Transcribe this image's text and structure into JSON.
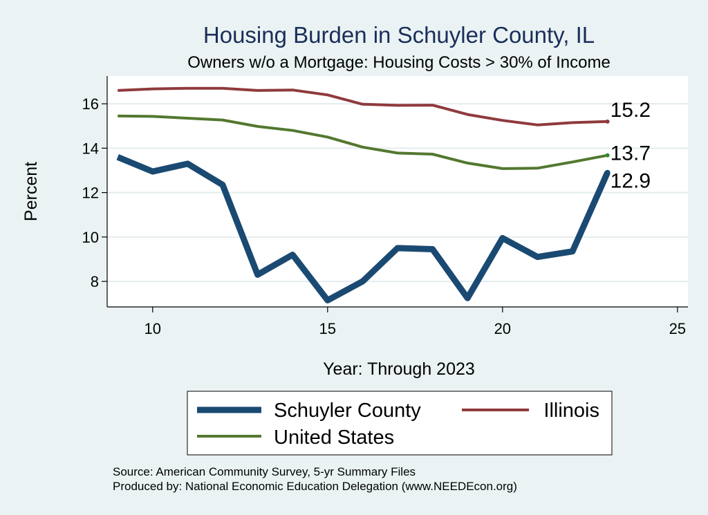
{
  "chart_data": {
    "type": "line",
    "title": "Housing Burden in Schuyler County, IL",
    "subtitle": "Owners w/o a Mortgage: Housing Costs > 30% of Income",
    "xlabel": "Year: Through 2023",
    "ylabel": "Percent",
    "xlim": [
      8.7,
      25.3
    ],
    "ylim": [
      6.85,
      17.25
    ],
    "xticks": [
      10,
      15,
      20,
      25
    ],
    "yticks": [
      8,
      10,
      12,
      14,
      16
    ],
    "x": [
      9,
      10,
      11,
      12,
      13,
      14,
      15,
      16,
      17,
      18,
      19,
      20,
      21,
      22,
      23
    ],
    "series": [
      {
        "name": "Schuyler County",
        "color": "#1a4a72",
        "values": [
          13.6,
          12.95,
          13.3,
          12.35,
          8.3,
          9.2,
          7.15,
          8.0,
          9.5,
          9.45,
          7.25,
          9.95,
          9.1,
          9.35,
          12.9
        ],
        "end_label": "12.9"
      },
      {
        "name": "Illinois",
        "color": "#8f3a3d",
        "values": [
          16.6,
          16.67,
          16.7,
          16.7,
          16.6,
          16.62,
          16.4,
          15.98,
          15.93,
          15.94,
          15.52,
          15.25,
          15.05,
          15.15,
          15.2
        ],
        "end_label": "15.2"
      },
      {
        "name": "United States",
        "color": "#52782f",
        "values": [
          15.45,
          15.43,
          15.35,
          15.27,
          14.98,
          14.8,
          14.5,
          14.05,
          13.78,
          13.73,
          13.33,
          13.08,
          13.1,
          13.38,
          13.68
        ],
        "end_label": "13.7"
      }
    ],
    "legend": {
      "position": "bottom",
      "entries": [
        "Schuyler County",
        "Illinois",
        "United States"
      ]
    },
    "notes": [
      "Source: American Community Survey, 5-yr Summary Files",
      "Produced by: National Economic Education Delegation (www.NEEDEcon.org)"
    ],
    "grid": true
  }
}
